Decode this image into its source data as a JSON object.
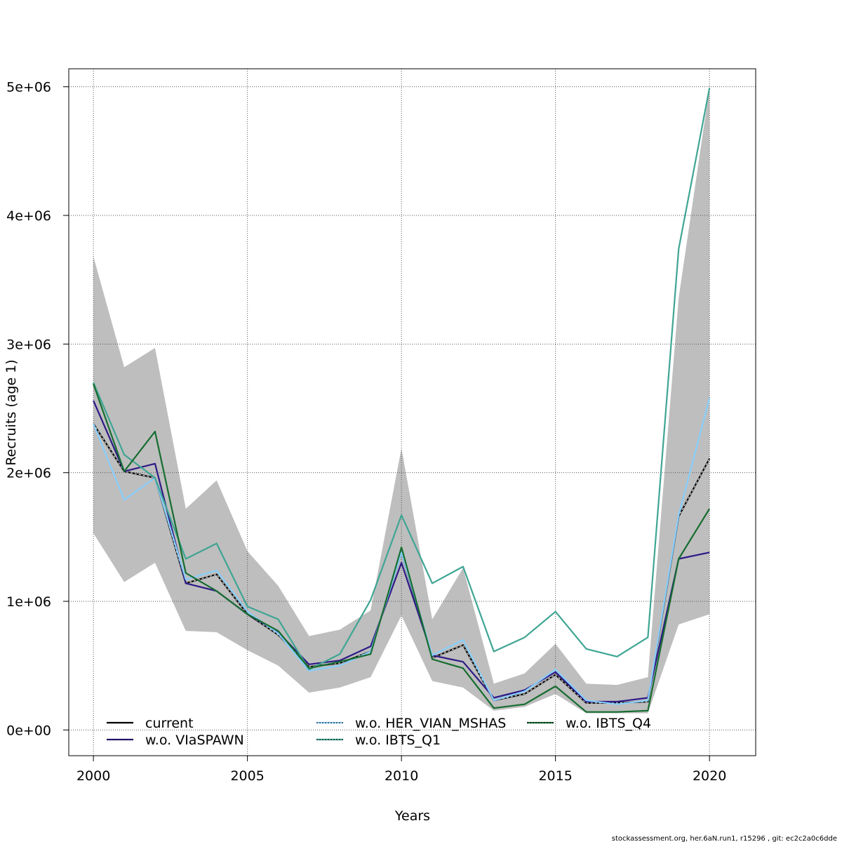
{
  "chart_data": {
    "type": "line",
    "xlabel": "Years",
    "ylabel": "Recruits (age 1)",
    "xlim": [
      1999.2,
      2021.5
    ],
    "ylim": [
      -200000,
      5140000
    ],
    "x_ticks": [
      2000,
      2005,
      2010,
      2015,
      2020
    ],
    "x_tick_labels": [
      "2000",
      "2005",
      "2010",
      "2015",
      "2020"
    ],
    "y_ticks": [
      0,
      1000000,
      2000000,
      3000000,
      4000000,
      5000000
    ],
    "y_tick_labels": [
      "0e+00",
      "1e+06",
      "2e+06",
      "3e+06",
      "4e+06",
      "5e+06"
    ],
    "grid": true,
    "legend_position": "bottom",
    "x": [
      2000,
      2001,
      2002,
      2003,
      2004,
      2005,
      2006,
      2007,
      2008,
      2009,
      2010,
      2011,
      2012,
      2013,
      2014,
      2015,
      2016,
      2017,
      2018,
      2019,
      2020
    ],
    "confidence_band": {
      "color": "#bebebe",
      "lower": [
        1530000,
        1150000,
        1300000,
        770000,
        760000,
        620000,
        500000,
        290000,
        330000,
        410000,
        890000,
        380000,
        330000,
        150000,
        180000,
        280000,
        130000,
        130000,
        130000,
        820000,
        900000
      ],
      "upper": [
        3680000,
        2820000,
        2970000,
        1720000,
        1940000,
        1390000,
        1120000,
        730000,
        780000,
        930000,
        2190000,
        860000,
        1260000,
        360000,
        440000,
        670000,
        360000,
        350000,
        410000,
        3360000,
        4990000
      ]
    },
    "series": [
      {
        "name": "current",
        "color": "#000000",
        "dash": "solid",
        "values": [
          2380000,
          2010000,
          1960000,
          1140000,
          1210000,
          900000,
          740000,
          490000,
          520000,
          610000,
          1380000,
          560000,
          660000,
          230000,
          280000,
          430000,
          210000,
          210000,
          220000,
          1660000,
          2110000
        ]
      },
      {
        "name": "w.o. VIaSPAWN",
        "color": "#2e1a87",
        "dash": "solid",
        "values": [
          2560000,
          2010000,
          2070000,
          1140000,
          1080000,
          900000,
          760000,
          510000,
          540000,
          650000,
          1300000,
          580000,
          530000,
          250000,
          310000,
          450000,
          220000,
          220000,
          250000,
          1330000,
          1380000
        ]
      },
      {
        "name": "w.o. HER_VIAN_MSHAS",
        "color": "#87cefa",
        "dash": "solid",
        "values": [
          2380000,
          1790000,
          1960000,
          1170000,
          1240000,
          920000,
          750000,
          460000,
          500000,
          610000,
          1380000,
          580000,
          700000,
          230000,
          300000,
          470000,
          230000,
          200000,
          230000,
          1670000,
          2580000
        ]
      },
      {
        "name": "w.o. IBTS_Q1",
        "color": "#3fa594",
        "dash": "solid",
        "values": [
          2700000,
          2140000,
          1960000,
          1330000,
          1450000,
          960000,
          860000,
          470000,
          590000,
          1010000,
          1670000,
          1140000,
          1270000,
          610000,
          720000,
          920000,
          630000,
          570000,
          720000,
          3740000,
          4990000
        ]
      },
      {
        "name": "w.o. IBTS_Q4",
        "color": "#166d30",
        "dash": "solid",
        "values": [
          2690000,
          2010000,
          2320000,
          1220000,
          1080000,
          900000,
          770000,
          480000,
          530000,
          590000,
          1420000,
          550000,
          480000,
          170000,
          200000,
          340000,
          140000,
          140000,
          150000,
          1330000,
          1720000
        ]
      }
    ]
  },
  "legend": {
    "items": [
      {
        "label": "current",
        "color": "#000000"
      },
      {
        "label": "w.o. VIaSPAWN",
        "color": "#2e1a87"
      },
      {
        "label": "w.o. HER_VIAN_MSHAS",
        "color": "#87cefa"
      },
      {
        "label": "w.o. IBTS_Q1",
        "color": "#3fa594"
      },
      {
        "label": "w.o. IBTS_Q4",
        "color": "#166d30"
      }
    ]
  },
  "footer": {
    "text": "stockassessment.org, her.6aN.run1, r15296 , git: ec2c2a0c6dde"
  }
}
